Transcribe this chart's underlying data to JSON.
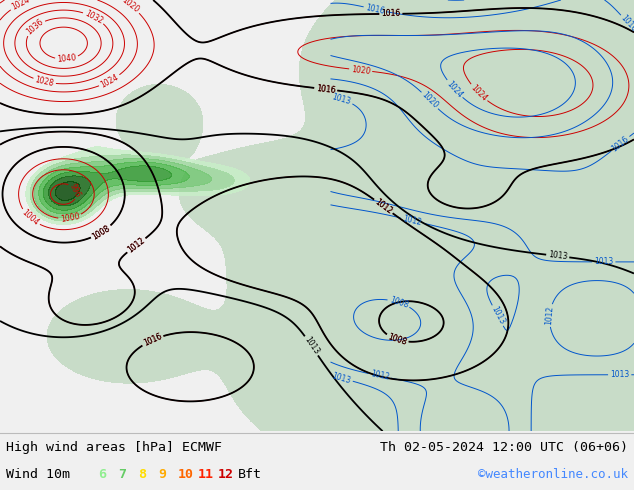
{
  "title_left": "High wind areas [hPa] ECMWF",
  "title_right": "Th 02-05-2024 12:00 UTC (06+06)",
  "subtitle_left": "Wind 10m",
  "legend_numbers": [
    "6",
    "7",
    "8",
    "9",
    "10",
    "11",
    "12"
  ],
  "legend_colors": [
    "#90ee90",
    "#66cc66",
    "#ffdd00",
    "#ffaa00",
    "#ff6600",
    "#ff2200",
    "#cc0000"
  ],
  "legend_suffix": "Bft",
  "website": "©weatheronline.co.uk",
  "website_color": "#4488ff",
  "bg_color": "#f0f0f0",
  "title_color": "#000000",
  "title_fontsize": 10,
  "figsize": [
    6.34,
    4.9
  ],
  "dpi": 100,
  "sea_color": "#e8e8e8",
  "land_color": "#c8dcc8",
  "wind_green_light": "#c8eec8",
  "wind_green_mid": "#a0d8a0",
  "red_contour_color": "#cc0000",
  "black_contour_color": "#000000",
  "blue_contour_color": "#0055cc"
}
